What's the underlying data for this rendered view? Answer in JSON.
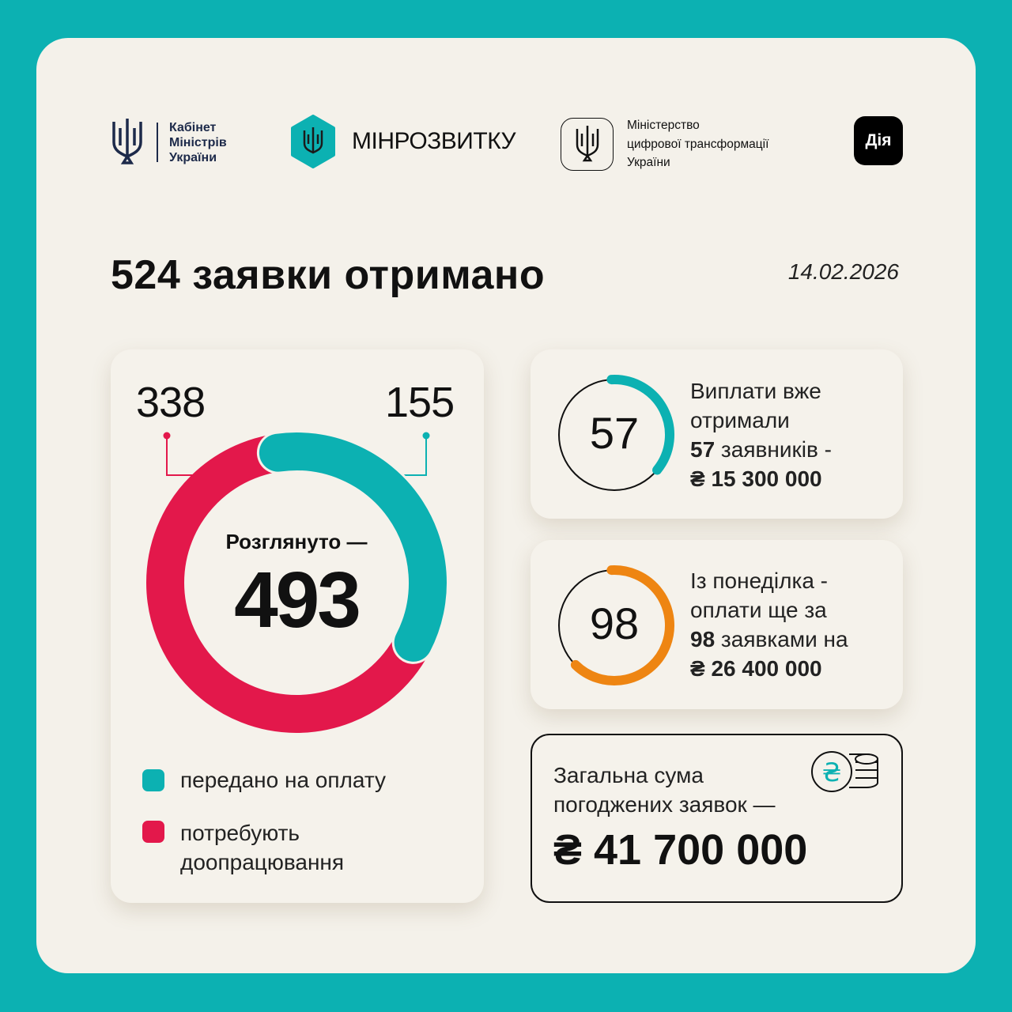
{
  "header": {
    "logos": [
      {
        "name": "cabinet-of-ministers",
        "text": "Кабінет Міністрів України",
        "lines": [
          "Кабінет",
          "Міністрів",
          "України"
        ]
      },
      {
        "name": "minrozvytku",
        "text": "МІНРОЗВИТКУ"
      },
      {
        "name": "ministry-digital",
        "lines": [
          "Міністерство",
          "цифрової трансформації",
          "України"
        ]
      },
      {
        "name": "diia",
        "text": "Дія"
      }
    ]
  },
  "title": "524 заявки отримано",
  "date": "14.02.2026",
  "colors": {
    "teal": "#0cb1b2",
    "red": "#e3184b",
    "orange": "#ee8512",
    "background": "#f4f1ea"
  },
  "chart_data": {
    "type": "pie",
    "subtype": "donut",
    "center_label": "Розглянуто —",
    "center_value": "493",
    "categories": [
      "передано на оплату",
      "потребують доопрацювання"
    ],
    "values": [
      155,
      338
    ],
    "value_labels": [
      "155",
      "338"
    ],
    "colors": [
      "#0cb1b2",
      "#e3184b"
    ],
    "legend": [
      {
        "label": "передано на оплату",
        "color": "#0cb1b2"
      },
      {
        "label_lines": [
          "потребують",
          "доопрацювання"
        ],
        "color": "#e3184b"
      }
    ],
    "legend_placement": "bottom"
  },
  "stats": [
    {
      "gauge_value": "57",
      "gauge_fraction": 0.368,
      "color": "#0cb1b2",
      "lines": [
        "Виплати вже",
        "отримали"
      ],
      "bold_num": "57",
      "after": " заявників -",
      "amount": "₴ 15 300 000"
    },
    {
      "gauge_value": "98",
      "gauge_fraction": 0.632,
      "color": "#ee8512",
      "lines": [
        "Із понеділка -",
        "оплати ще за"
      ],
      "bold_num": "98",
      "after": " заявками на",
      "amount": "₴ 26 400 000"
    }
  ],
  "total": {
    "lines": [
      "Загальна сума",
      "погоджених заявок —"
    ],
    "amount": "₴ 41 700 000",
    "icon": "hryvnia-coins-icon"
  }
}
